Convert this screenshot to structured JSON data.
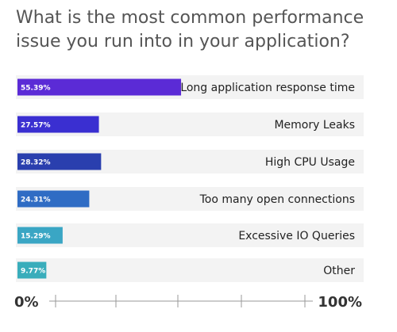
{
  "title": "What is the most common performance issue you run into in your application?",
  "chart_data": {
    "type": "bar",
    "orientation": "horizontal",
    "categories": [
      "Long application response time",
      "Memory Leaks",
      "High CPU Usage",
      "Too many open connections",
      "Excessive IO Queries",
      "Other"
    ],
    "values": [
      55.39,
      27.57,
      28.32,
      24.31,
      15.29,
      9.77
    ],
    "value_labels": [
      "55.39%",
      "27.57%",
      "28.32%",
      "24.31%",
      "15.29%",
      "9.77%"
    ],
    "colors": [
      "#5b2bd6",
      "#3a2fd1",
      "#2a3fae",
      "#2f6cc4",
      "#3aa6c4",
      "#39adbb"
    ],
    "xlim": [
      0,
      100
    ],
    "axis_labels": [
      "0%",
      "100%"
    ]
  }
}
